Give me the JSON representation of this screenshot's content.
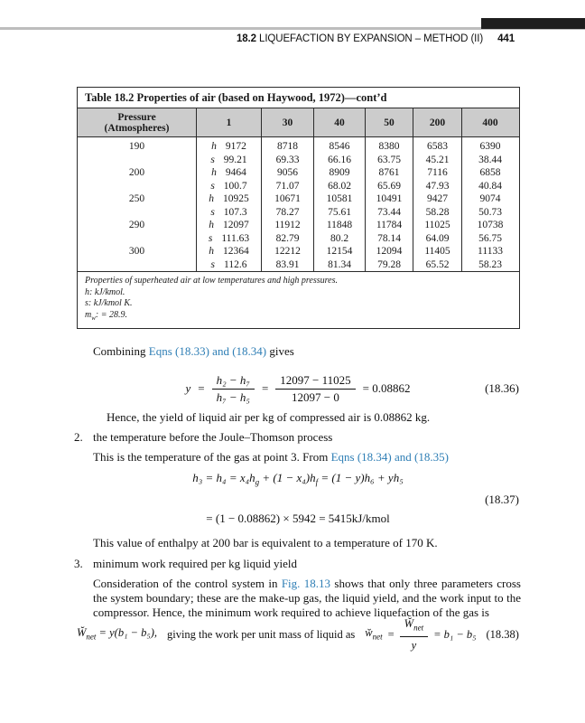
{
  "running_head": {
    "section_number": "18.2",
    "section_title": " LIQUEFACTION BY EXPANSION – METHOD (II)",
    "page_number": "441"
  },
  "table": {
    "title": "Table 18.2  Properties of air (based on Haywood, 1972)—cont’d",
    "pressure_header_line1": "Pressure",
    "pressure_header_line2": "(Atmospheres)",
    "column_headers": [
      "1",
      "30",
      "40",
      "50",
      "200",
      "400"
    ],
    "row_labels": {
      "h": "h",
      "s": "s"
    },
    "rows": [
      {
        "pressure": "190",
        "h": [
          "9172",
          "8718",
          "8546",
          "8380",
          "6583",
          "6390"
        ],
        "s": [
          "99.21",
          "69.33",
          "66.16",
          "63.75",
          "45.21",
          "38.44"
        ]
      },
      {
        "pressure": "200",
        "h": [
          "9464",
          "9056",
          "8909",
          "8761",
          "7116",
          "6858"
        ],
        "s": [
          "100.7",
          "71.07",
          "68.02",
          "65.69",
          "47.93",
          "40.84"
        ]
      },
      {
        "pressure": "250",
        "h": [
          "10925",
          "10671",
          "10581",
          "10491",
          "9427",
          "9074"
        ],
        "s": [
          "107.3",
          "78.27",
          "75.61",
          "73.44",
          "58.28",
          "50.73"
        ]
      },
      {
        "pressure": "290",
        "h": [
          "12097",
          "11912",
          "11848",
          "11784",
          "11025",
          "10738"
        ],
        "s": [
          "111.63",
          "82.79",
          "80.2",
          "78.14",
          "64.09",
          "56.75"
        ]
      },
      {
        "pressure": "300",
        "h": [
          "12364",
          "12212",
          "12154",
          "12094",
          "11405",
          "11133"
        ],
        "s": [
          "112.6",
          "83.91",
          "81.34",
          "79.28",
          "65.52",
          "58.23"
        ]
      }
    ],
    "footnote_title": "Properties of superheated air at low temperatures and high pressures.",
    "footnote_h": "h: kJ/kmol.",
    "footnote_s": "s: kJ/kmol K.",
    "footnote_m": {
      "base": "m",
      "sub": "w",
      "rest": ": = 28.9."
    }
  },
  "content": {
    "para_combining": {
      "pre": "Combining ",
      "link": "Eqns (18.33) and (18.34)",
      "post": " gives"
    },
    "eq36": {
      "lhs": "y",
      "eq1": "=",
      "f1num": "h₂ − h₇",
      "f1den": "h₇ − h₅",
      "eq2": "=",
      "f2num": "12097 − 11025",
      "f2den": "12097 − 0",
      "rhs": "= 0.08862",
      "label": "(18.36)"
    },
    "hence": "Hence, the yield of liquid air per kg of compressed air is 0.08862 kg.",
    "item2": {
      "num": "2.",
      "text": "the temperature before the Joule–Thomson process"
    },
    "point3": {
      "pre": "This is the temperature of the gas at point 3. From ",
      "link": "Eqns (18.34) and (18.35)"
    },
    "eq37": {
      "line1_p1": "h₃ = h₄ = x₄h",
      "line1_s1": "g",
      "line1_p2": " + (1 − x₄)h",
      "line1_s2": "f",
      "line1_p3": " = (1 − y)h₆ + yh₅",
      "label": "(18.37)",
      "line2": "= (1 − 0.08862) × 5942 = 5415kJ/kmol"
    },
    "enthalpy_note": "This value of enthalpy at 200 bar is equivalent to a temperature of 170 K.",
    "item3": {
      "num": "3.",
      "text": "minimum work required per kg liquid yield"
    },
    "consideration": {
      "pre": "Consideration of the control system in ",
      "link": "Fig. 18.13",
      "post": " shows that only three parameters cross the system boundary; these are the make-up gas, the liquid yield, and the work input to the compressor. Hence, the minimum work required to achieve liquefaction of the gas is"
    },
    "eq38": {
      "w1": "W̆",
      "w1sub": "net",
      "p1": " = y(b₁ − b₅),",
      "mid": "giving the work per unit mass of liquid as",
      "w2": "w̆",
      "w2sub": "net",
      "eq": "=",
      "fnum_base": "W̆",
      "fnum_sub": "net",
      "fden": "y",
      "rhs": "= b₁ − b₅",
      "label": "(18.38)"
    }
  },
  "colors": {
    "link_blue": "#2E7EB5",
    "table_header_gray": "#cccccc",
    "top_bar_black": "#1e1e1e",
    "top_rule_gray": "#bdbdbd"
  }
}
